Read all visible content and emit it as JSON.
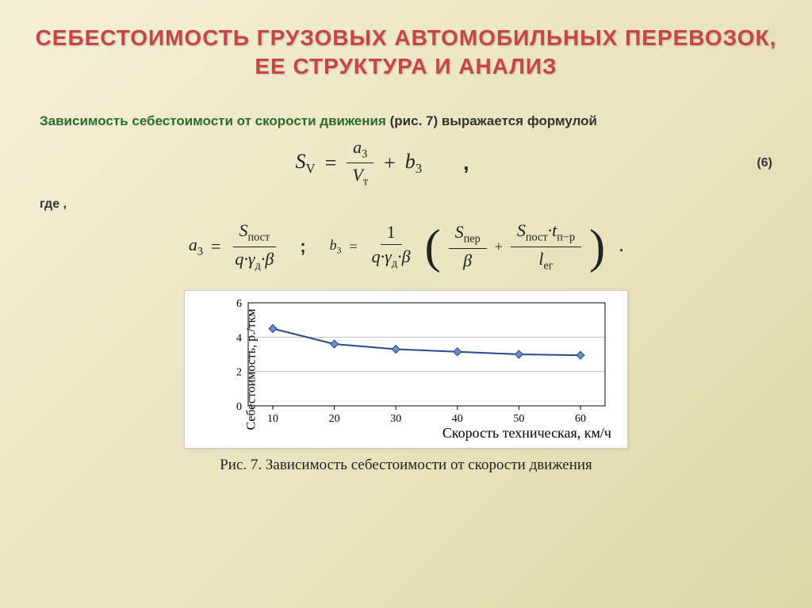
{
  "title": "СЕБЕСТОИМОСТЬ ГРУЗОВЫХ АВТОМОБИЛЬНЫХ ПЕРЕВОЗОК, ЕЕ СТРУКТУРА И АНАЛИЗ",
  "intro_highlight": "Зависимость себестоимости от скорости движения",
  "intro_rest": " (рис. 7) выражается формулой",
  "eq_number": "(6)",
  "where": "где ,",
  "caption": "Рис. 7. Зависимость себестоимости от скорости движения",
  "formula": {
    "lhs": "S",
    "lhs_sub": "V",
    "num": "a",
    "num_sub": "3",
    "den": "V",
    "den_sub": "т",
    "plus": "b",
    "plus_sub": "3"
  },
  "def_a": {
    "lhs": "a",
    "lhs_sub": "3",
    "num": "S",
    "num_sub": "пост",
    "den": "q·γ",
    "den_sub": "д",
    "den_tail": "·β"
  },
  "def_b": {
    "lhs": "b",
    "lhs_sub": "3",
    "f1_num": "1",
    "f1_den": "q·γ",
    "f1_den_sub": "д",
    "f1_den_tail": "·β",
    "t1_num": "S",
    "t1_num_sub": "пер",
    "t1_den": "β",
    "t2_num": "S",
    "t2_num_sub": "пост",
    "t2_num_tail": "·t",
    "t2_num_sub2": "п−р",
    "t2_den": "l",
    "t2_den_sub": "ег"
  },
  "chart": {
    "type": "line",
    "ylabel": "Себестоимость, р./ткм",
    "xlabel": "Скорость техническая, км/ч",
    "x_ticks": [
      10,
      20,
      30,
      40,
      50,
      60
    ],
    "y_ticks": [
      0,
      2,
      4,
      6
    ],
    "ylim": [
      0,
      6
    ],
    "points": [
      {
        "x": 10,
        "y": 4.5
      },
      {
        "x": 20,
        "y": 3.6
      },
      {
        "x": 30,
        "y": 3.3
      },
      {
        "x": 40,
        "y": 3.15
      },
      {
        "x": 50,
        "y": 3.0
      },
      {
        "x": 60,
        "y": 2.95
      }
    ],
    "line_color": "#2a4a8a",
    "marker_fill": "#6a8ac8",
    "marker_stroke": "#2a4a8a",
    "grid_color": "#bfbfbf",
    "axis_color": "#000000",
    "background": "#ffffff",
    "tick_fontsize": 14,
    "label_fontsize": 16,
    "marker_size": 5
  }
}
